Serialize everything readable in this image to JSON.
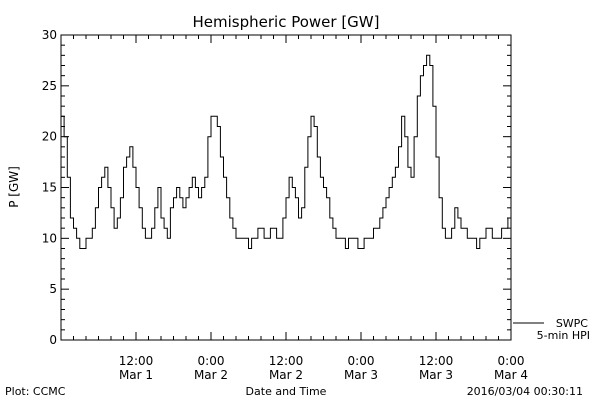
{
  "chart_data": {
    "type": "line",
    "title": "Hemispheric Power [GW]",
    "xlabel": "Date and Time",
    "ylabel": "P [GW]",
    "ylim": [
      0,
      30
    ],
    "yticks": [
      0,
      5,
      10,
      15,
      20,
      25,
      30
    ],
    "xlim_hours": [
      0,
      72
    ],
    "xticks": [
      {
        "hour": 12,
        "time": "12:00",
        "date": "Mar 1"
      },
      {
        "hour": 24,
        "time": "0:00",
        "date": "Mar 2"
      },
      {
        "hour": 36,
        "time": "12:00",
        "date": "Mar 2"
      },
      {
        "hour": 48,
        "time": "0:00",
        "date": "Mar 3"
      },
      {
        "hour": 60,
        "time": "12:00",
        "date": "Mar 3"
      },
      {
        "hour": 72,
        "time": "0:00",
        "date": "Mar 4"
      }
    ],
    "legend": [
      "SWPC",
      "5-min HPI"
    ],
    "legend_placement": "bottom-right-outside",
    "series": [
      {
        "x": [
          0,
          0.5,
          1,
          1.5,
          2,
          2.5,
          3,
          3.5,
          4,
          4.5,
          5,
          5.5,
          6,
          6.5,
          7,
          7.5,
          8,
          8.5,
          9,
          9.5,
          10,
          10.5,
          11,
          11.5,
          12,
          12.5,
          13,
          13.5,
          14,
          14.5,
          15,
          15.5,
          16,
          16.5,
          17,
          17.5,
          18,
          18.5,
          19,
          19.5,
          20,
          20.5,
          21,
          21.5,
          22,
          22.5,
          23,
          23.5,
          24,
          24.5,
          25,
          25.5,
          26,
          26.5,
          27,
          27.5,
          28,
          28.5,
          29,
          29.5,
          30,
          30.5,
          31,
          31.5,
          32,
          32.5,
          33,
          33.5,
          34,
          34.5,
          35,
          35.5,
          36,
          36.5,
          37,
          37.5,
          38,
          38.5,
          39,
          39.5,
          40,
          40.5,
          41,
          41.5,
          42,
          42.5,
          43,
          43.5,
          44,
          44.5,
          45,
          45.5,
          46,
          46.5,
          47,
          47.5,
          48,
          48.5,
          49,
          49.5,
          50,
          50.5,
          51,
          51.5,
          52,
          52.5,
          53,
          53.5,
          54,
          54.5,
          55,
          55.5,
          56,
          56.5,
          57,
          57.5,
          58,
          58.5,
          59,
          59.5,
          60,
          60.5,
          61,
          61.5,
          62,
          62.5,
          63,
          63.5,
          64,
          64.5,
          65,
          65.5,
          66,
          66.5,
          67,
          67.5,
          68,
          68.5,
          69,
          69.5,
          70,
          70.5,
          71,
          71.5,
          72
        ],
        "y": [
          22,
          20,
          16,
          12,
          11,
          10,
          9,
          9,
          10,
          10,
          11,
          13,
          15,
          16,
          17,
          15,
          13,
          11,
          12,
          14,
          17,
          18,
          19,
          17,
          15,
          13,
          11,
          10,
          10,
          11,
          13,
          15,
          12,
          11,
          10,
          13,
          14,
          15,
          14,
          13,
          14,
          15,
          16,
          15,
          14,
          15,
          16,
          20,
          22,
          22,
          21,
          18,
          16,
          14,
          12,
          11,
          10,
          10,
          10,
          10,
          9,
          10,
          10,
          11,
          11,
          10,
          10,
          11,
          11,
          10,
          10,
          12,
          14,
          16,
          15,
          14,
          12,
          13,
          17,
          20,
          22,
          21,
          18,
          16,
          15,
          14,
          12,
          11,
          10,
          10,
          10,
          9,
          10,
          10,
          10,
          9,
          9,
          10,
          10,
          10,
          11,
          11,
          12,
          13,
          14,
          15,
          16,
          17,
          19,
          22,
          20,
          17,
          16,
          20,
          24,
          26,
          27,
          28,
          27,
          23,
          18,
          14,
          11,
          10,
          10,
          11,
          13,
          12,
          11,
          11,
          10,
          10,
          10,
          9,
          10,
          10,
          11,
          11,
          10,
          10,
          10,
          11,
          11,
          12,
          11
        ]
      }
    ]
  },
  "footer": {
    "plot_credit": "Plot: CCMC",
    "timestamp": "2016/03/04 00:30:11"
  }
}
